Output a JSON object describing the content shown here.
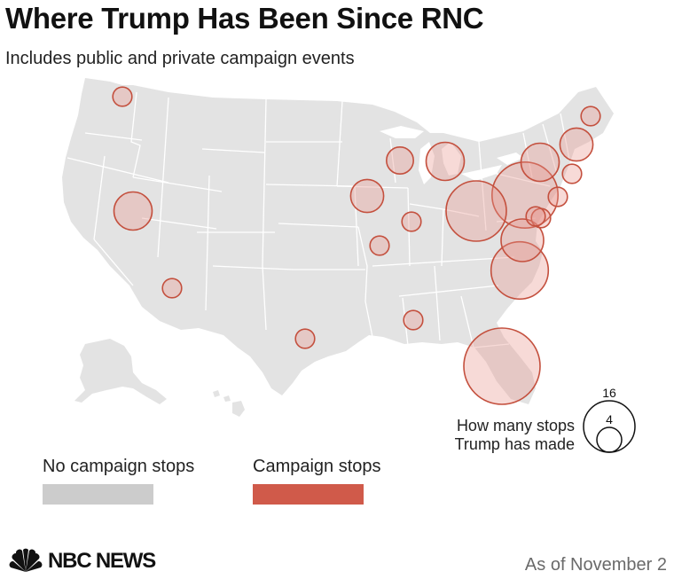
{
  "title": "Where Trump Has Been Since RNC",
  "subtitle": "Includes public and private campaign events",
  "legend": {
    "no_stops": {
      "label": "No campaign stops",
      "color": "#cccccc"
    },
    "stops": {
      "label": "Campaign stops",
      "color": "#d05a4a"
    }
  },
  "size_legend": {
    "caption_line1": "How many stops",
    "caption_line2": "Trump has made",
    "large_value": "16",
    "small_value": "4"
  },
  "colors": {
    "land": "#e3e3e3",
    "borders": "#ffffff",
    "bubble_fill": "rgba(232,150,140,0.35)",
    "bubble_stroke": "#c4503e"
  },
  "branding": {
    "logo_text": "NBC NEWS",
    "logo_icon": "peacock-icon"
  },
  "date_note": "As of November 2",
  "stops": [
    {
      "state": "Washington",
      "count": 1
    },
    {
      "state": "Nevada",
      "count": 4
    },
    {
      "state": "Arizona",
      "count": 1
    },
    {
      "state": "Texas",
      "count": 1
    },
    {
      "state": "Iowa",
      "count": 3
    },
    {
      "state": "Wisconsin",
      "count": 2
    },
    {
      "state": "Michigan",
      "count": 4
    },
    {
      "state": "Illinois",
      "count": 1
    },
    {
      "state": "Missouri",
      "count": 1
    },
    {
      "state": "Mississippi",
      "count": 1
    },
    {
      "state": "Ohio",
      "count": 10
    },
    {
      "state": "Pennsylvania",
      "count": 12
    },
    {
      "state": "New York",
      "count": 4
    },
    {
      "state": "New Hampshire",
      "count": 3
    },
    {
      "state": "Maine",
      "count": 1
    },
    {
      "state": "Connecticut",
      "count": 1
    },
    {
      "state": "New Jersey",
      "count": 1
    },
    {
      "state": "Maryland",
      "count": 1
    },
    {
      "state": "Washington D.C.",
      "count": 1
    },
    {
      "state": "Virginia",
      "count": 5
    },
    {
      "state": "North Carolina",
      "count": 9
    },
    {
      "state": "Florida",
      "count": 16
    }
  ]
}
